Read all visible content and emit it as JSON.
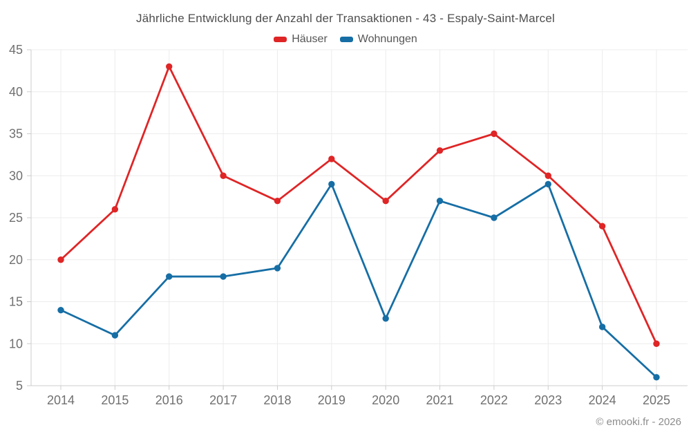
{
  "title": "Jährliche Entwicklung der Anzahl der Transaktionen - 43 - Espaly-Saint-Marcel",
  "footer": "© emooki.fr - 2026",
  "legend": {
    "items": [
      {
        "label": "Häuser",
        "color": "#df2526"
      },
      {
        "label": "Wohnungen",
        "color": "#166ea5"
      }
    ]
  },
  "chart_data": {
    "type": "line",
    "title": "Jährliche Entwicklung der Anzahl der Transaktionen - 43 - Espaly-Saint-Marcel",
    "categories": [
      "2014",
      "2015",
      "2016",
      "2017",
      "2018",
      "2019",
      "2020",
      "2021",
      "2022",
      "2023",
      "2024",
      "2025"
    ],
    "series": [
      {
        "name": "Häuser",
        "color": "#df2526",
        "values": [
          20,
          26,
          43,
          30,
          27,
          32,
          27,
          33,
          35,
          30,
          24,
          10
        ]
      },
      {
        "name": "Wohnungen",
        "color": "#166ea5",
        "values": [
          14,
          11,
          18,
          18,
          19,
          29,
          13,
          27,
          25,
          29,
          12,
          6
        ]
      }
    ],
    "xlabel": "",
    "ylabel": "",
    "ylim": [
      5,
      45
    ],
    "ytick_step": 5,
    "grid": true,
    "legend_position": "top",
    "styles": {
      "grid_color": "#ececec",
      "axis_color": "#cccccc",
      "tick_color": "#cccccc",
      "axis_label_color": "#707070"
    }
  }
}
